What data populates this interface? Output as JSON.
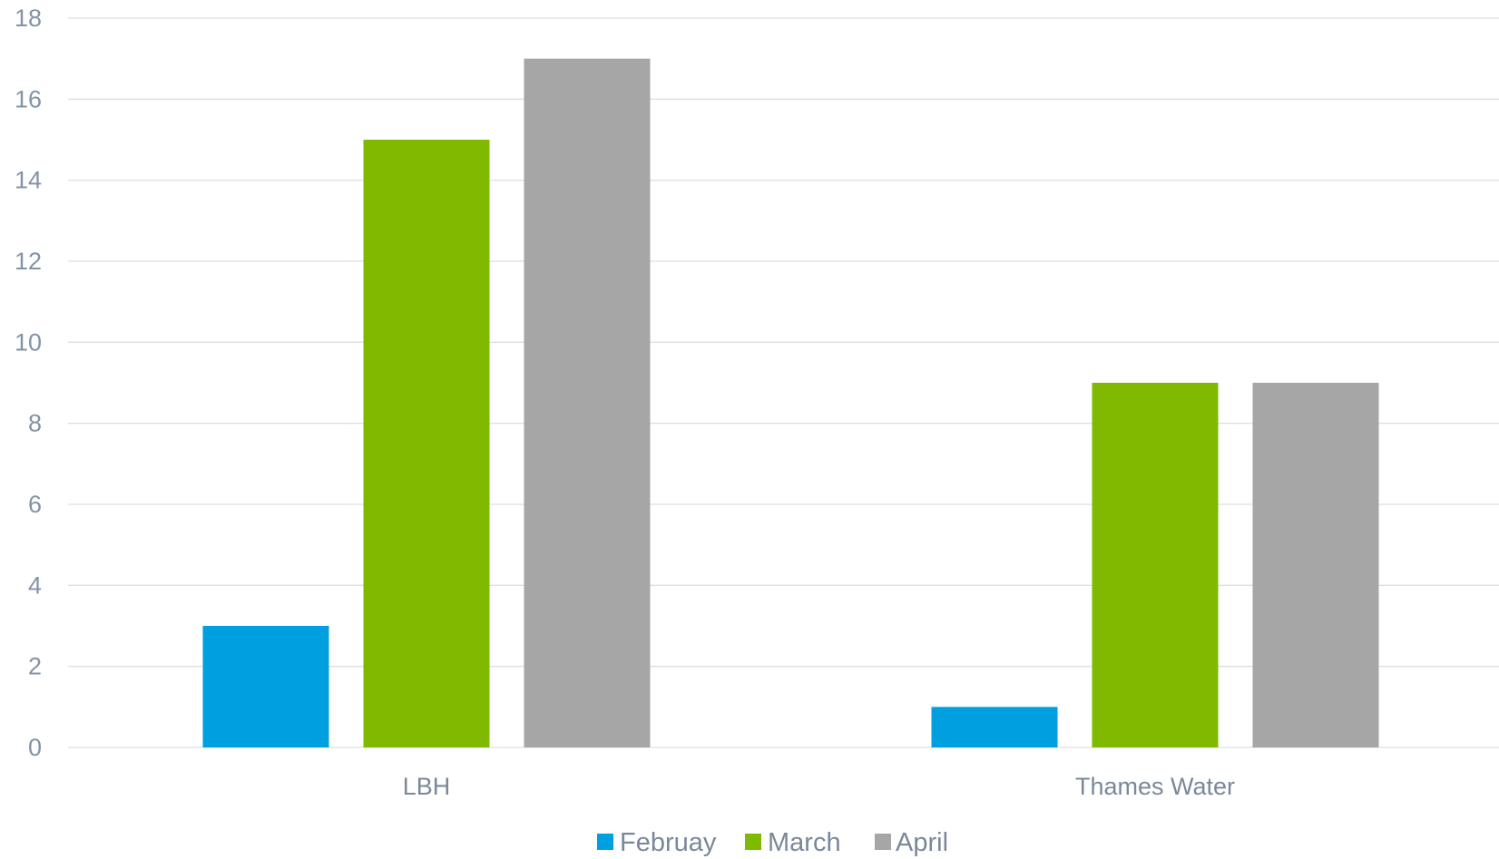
{
  "chart_data": {
    "type": "bar",
    "title": "",
    "xlabel": "",
    "ylabel": "",
    "categories": [
      "LBH",
      "Thames Water"
    ],
    "series": [
      {
        "name": "Februay",
        "values": [
          3,
          1
        ],
        "color": "#009fe0"
      },
      {
        "name": "March",
        "values": [
          15,
          9
        ],
        "color": "#7fba00"
      },
      {
        "name": "April",
        "values": [
          17,
          9
        ],
        "color": "#a6a6a6"
      }
    ],
    "ylim": [
      0,
      18
    ],
    "yticks": [
      0,
      2,
      4,
      6,
      8,
      10,
      12,
      14,
      16,
      18
    ],
    "grid": true,
    "legend_position": "bottom-center",
    "gridline_color": "#dcdfe3"
  }
}
